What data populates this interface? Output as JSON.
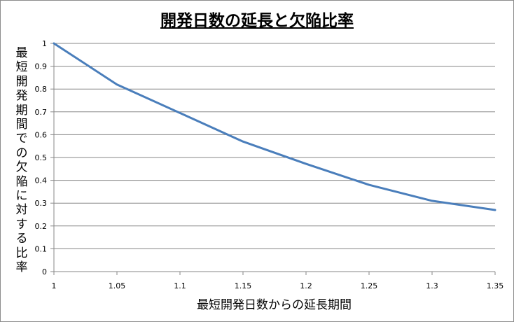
{
  "chart_data": {
    "type": "line",
    "title": "開発日数の延長と欠陥比率",
    "xlabel": "最短開発日数からの延長期間",
    "ylabel": "最短開発期間での欠陥に対する比率",
    "x_ticks": [
      "1",
      "1.05",
      "1.1",
      "1.15",
      "1.2",
      "1.25",
      "1.3",
      "1.35"
    ],
    "y_ticks": [
      "0",
      "0.1",
      "0.2",
      "0.3",
      "0.4",
      "0.5",
      "0.6",
      "0.7",
      "0.8",
      "0.9",
      "1"
    ],
    "xlim": [
      1,
      1.35
    ],
    "ylim": [
      0,
      1
    ],
    "grid": "horizontal",
    "series": [
      {
        "color": "#4a7ebb",
        "x": [
          1,
          1.05,
          1.1,
          1.15,
          1.2,
          1.25,
          1.3,
          1.35
        ],
        "y": [
          1.0,
          0.82,
          0.695,
          0.57,
          0.472,
          0.38,
          0.31,
          0.27
        ]
      }
    ]
  }
}
